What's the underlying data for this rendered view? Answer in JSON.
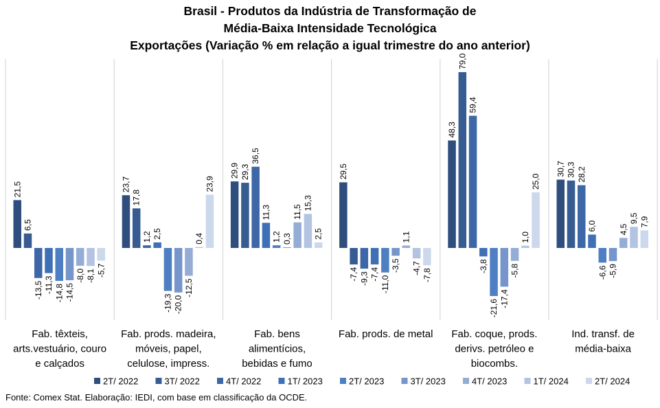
{
  "chart_data": {
    "type": "bar",
    "title_lines": [
      "Brasil - Produtos da Indústria de Transformação de",
      "Média-Baixa Intensidade Tecnológica",
      "Exportações (Variação % em relação a igual trimestre do ano anterior)"
    ],
    "categories": [
      [
        "Fab. têxteis,",
        "arts.vestuário, couro",
        "e calçados"
      ],
      [
        "Fab. prods. madeira,",
        "móveis, papel,",
        "celulose, impress."
      ],
      [
        "Fab. bens",
        "alimentícios,",
        "bebidas e fumo"
      ],
      [
        "Fab. prods. de metal"
      ],
      [
        "Fab. coque, prods.",
        "derivs. petróleo e",
        "biocombs."
      ],
      [
        "Ind. transf. de",
        "média-baixa"
      ]
    ],
    "series": [
      {
        "name": "2T/ 2022",
        "color": "#2f4e7d",
        "values": [
          21.5,
          23.7,
          29.9,
          29.5,
          48.3,
          30.7
        ],
        "labels": [
          "21,5",
          "23,7",
          "29,9",
          "29,5",
          "48,3",
          "30,7"
        ]
      },
      {
        "name": "3T/ 2022",
        "color": "#375c92",
        "values": [
          6.5,
          17.8,
          29.3,
          -7.4,
          79.0,
          30.3
        ],
        "labels": [
          "6,5",
          "17,8",
          "29,3",
          "-7,4",
          "79,0",
          "30,3"
        ]
      },
      {
        "name": "4T/ 2022",
        "color": "#3d67a6",
        "values": [
          -13.5,
          1.2,
          36.5,
          -9.3,
          59.4,
          28.2
        ],
        "labels": [
          "-13,5",
          "1,2",
          "36,5",
          "-9,3",
          "59,4",
          "28,2"
        ]
      },
      {
        "name": "1T/ 2023",
        "color": "#3f70b6",
        "values": [
          -11.3,
          2.5,
          11.3,
          -7.4,
          -3.8,
          6.0
        ],
        "labels": [
          "-11,3",
          "2,5",
          "11,3",
          "-7,4",
          "-3,8",
          "6,0"
        ]
      },
      {
        "name": "2T/ 2023",
        "color": "#4d7fc2",
        "values": [
          -14.8,
          -19.3,
          1.2,
          -11.0,
          -21.6,
          -6.6
        ],
        "labels": [
          "-14,8",
          "-19,3",
          "1,2",
          "-11,0",
          "-21,6",
          "-6,6"
        ]
      },
      {
        "name": "3T/ 2023",
        "color": "#7595cb",
        "values": [
          -14.5,
          -20.0,
          0.3,
          -3.5,
          -17.4,
          -5.9
        ],
        "labels": [
          "-14,5",
          "-20,0",
          "0,3",
          "-3,5",
          "-17,4",
          "-5,9"
        ]
      },
      {
        "name": "4T/ 2023",
        "color": "#94acd6",
        "values": [
          -8.0,
          -12.5,
          11.5,
          1.1,
          -5.8,
          4.5
        ],
        "labels": [
          "-8,0",
          "-12,5",
          "11,5",
          "1,1",
          "-5,8",
          "4,5"
        ]
      },
      {
        "name": "1T/ 2024",
        "color": "#b3c4e2",
        "values": [
          -8.1,
          0.4,
          15.3,
          -4.7,
          1.0,
          9.5
        ],
        "labels": [
          "-8,1",
          "0,4",
          "15,3",
          "-4,7",
          "1,0",
          "9,5"
        ]
      },
      {
        "name": "2T/ 2024",
        "color": "#ccd8ec",
        "values": [
          -5.7,
          23.9,
          2.5,
          -7.8,
          25.0,
          7.9
        ],
        "labels": [
          "-5,7",
          "23,9",
          "2,5",
          "-7,8",
          "25,0",
          "7,9"
        ]
      }
    ],
    "legend_position": "bottom",
    "grid": false,
    "source": "Fonte: Comex Stat. Elaboração: IEDI, com base em classificação da OCDE."
  }
}
